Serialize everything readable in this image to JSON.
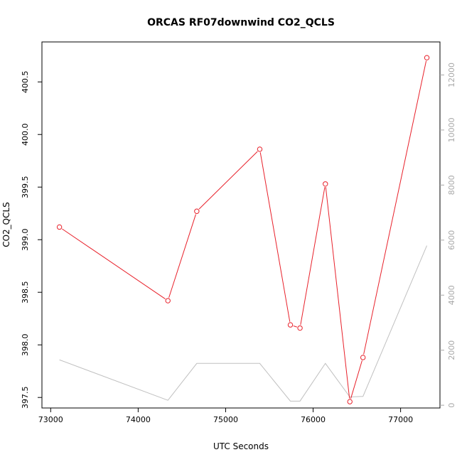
{
  "chart_data": {
    "type": "line",
    "title": "ORCAS RF07downwind CO2_QCLS",
    "xlabel": "UTC Seconds",
    "ylabel": "CO2_QCLS",
    "xlim": [
      72900,
      77450
    ],
    "ylim": [
      397.4,
      400.88
    ],
    "y2lim": [
      -100,
      13200
    ],
    "xticks": [
      "73000",
      "74000",
      "75000",
      "76000",
      "77000"
    ],
    "yticks": [
      "397.5",
      "398.0",
      "398.5",
      "399.0",
      "399.5",
      "400.0",
      "400.5"
    ],
    "y2ticks": [
      "0",
      "2000",
      "4000",
      "6000",
      "8000",
      "10000",
      "12000"
    ],
    "grid": false,
    "series": [
      {
        "color": "#e8202a",
        "axis": "left",
        "markers": true,
        "x": [
          73100,
          74340,
          74670,
          75390,
          75740,
          75850,
          76140,
          76420,
          76570,
          77300
        ],
        "y": [
          399.12,
          398.42,
          399.27,
          399.86,
          398.19,
          398.16,
          399.53,
          397.46,
          397.88,
          400.73
        ]
      },
      {
        "color": "#c0c0c0",
        "axis": "right",
        "markers": false,
        "x": [
          73100,
          74340,
          74670,
          75390,
          75740,
          75850,
          76140,
          76420,
          76570,
          77300
        ],
        "y": [
          1650,
          180,
          1520,
          1520,
          150,
          150,
          1520,
          300,
          320,
          5800
        ]
      }
    ]
  }
}
